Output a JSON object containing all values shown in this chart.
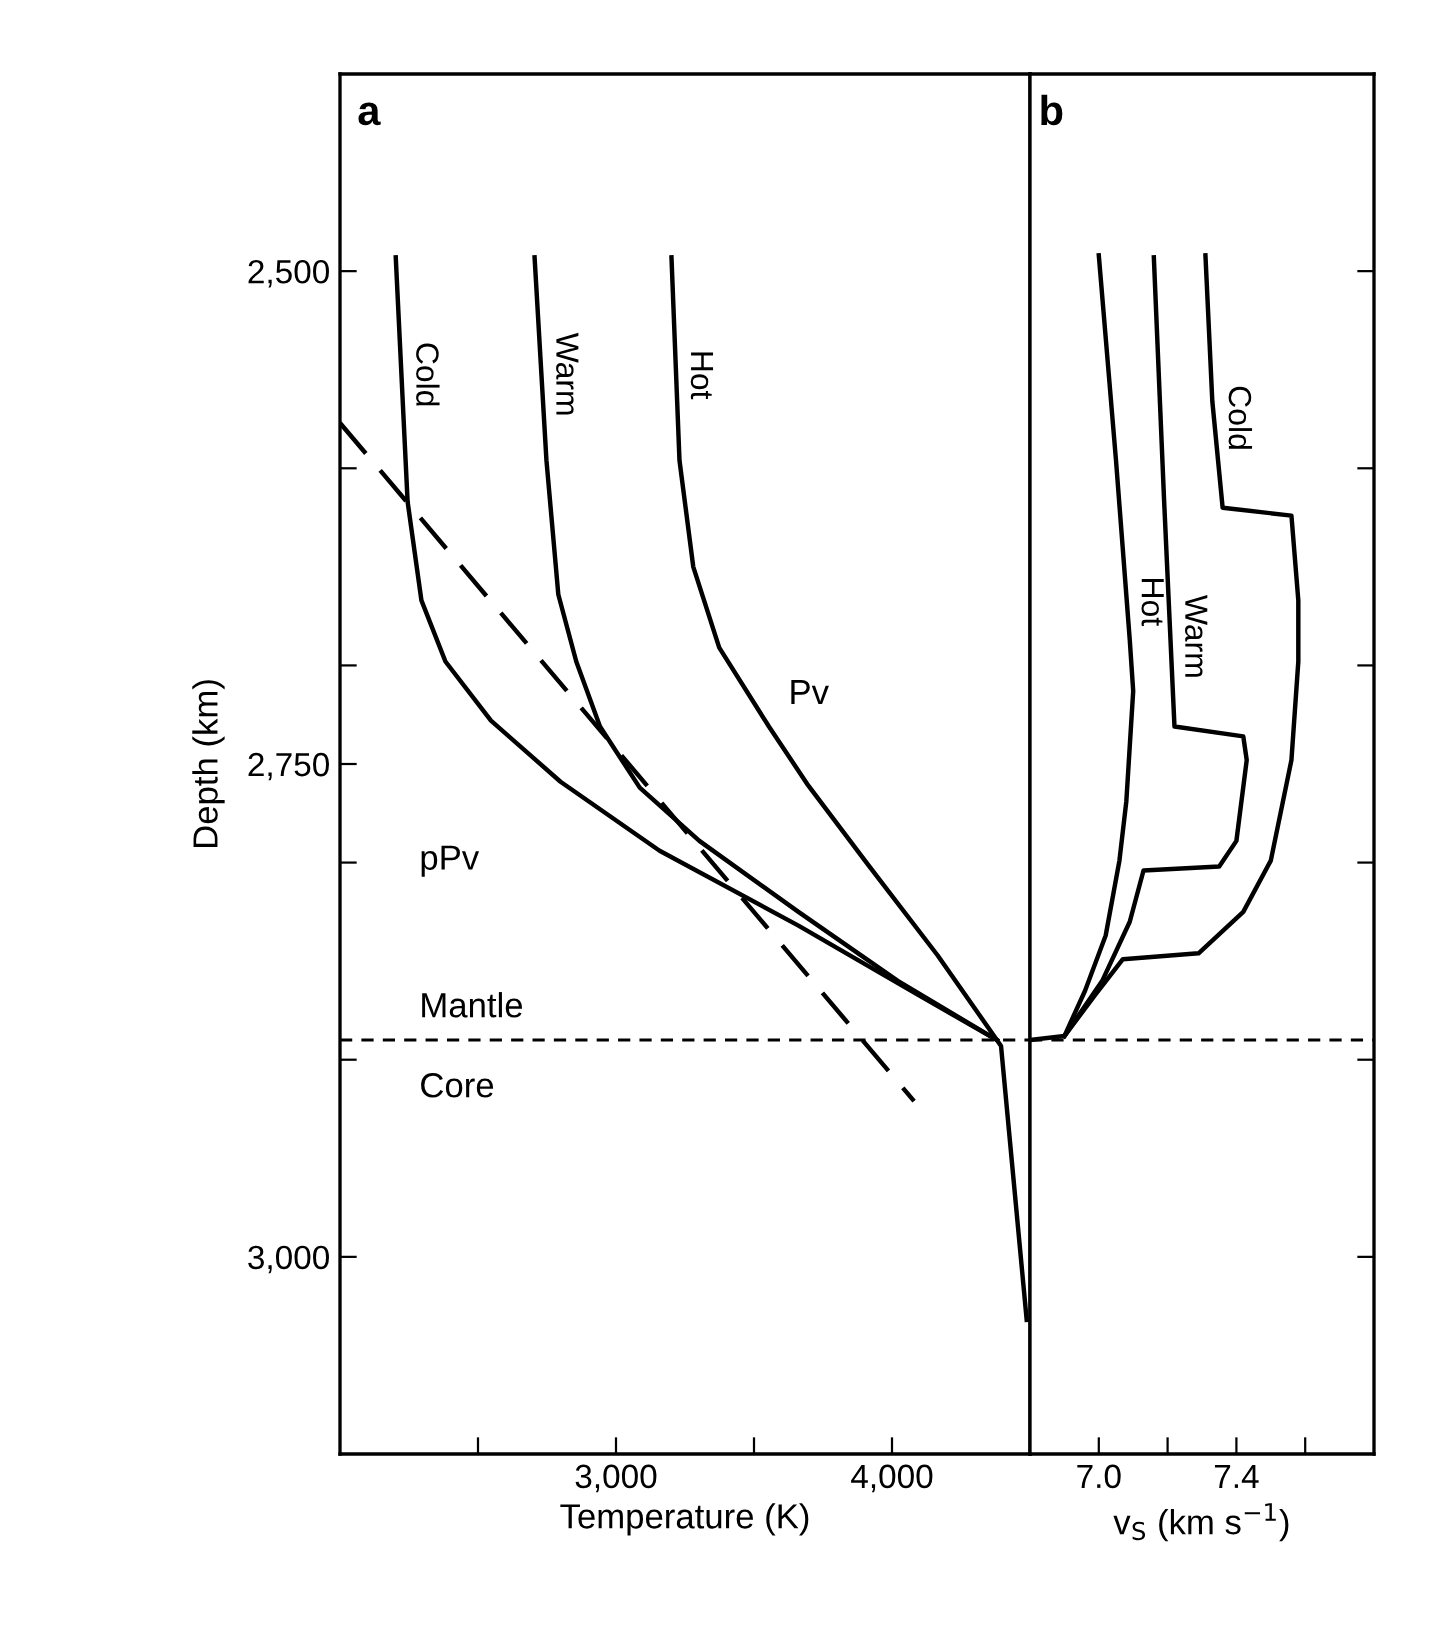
{
  "chart_data": [
    {
      "type": "line",
      "title": "a",
      "xlabel": "Temperature (K)",
      "ylabel": "Depth (km)",
      "xlim": [
        2000,
        4500
      ],
      "xticks": [
        {
          "value": 2500,
          "label": null
        },
        {
          "value": 3000,
          "label": "3,000"
        },
        {
          "value": 3500,
          "label": null
        },
        {
          "value": 4000,
          "label": "4,000"
        }
      ],
      "ylim": [
        3100,
        2400
      ],
      "yticks": [
        {
          "value": 2500,
          "label": "2,500"
        },
        {
          "value": 2600,
          "label": null
        },
        {
          "value": 2700,
          "label": null
        },
        {
          "value": 2750,
          "label": "2,750"
        },
        {
          "value": 2800,
          "label": null
        },
        {
          "value": 2900,
          "label": null
        },
        {
          "value": 3000,
          "label": "3,000"
        }
      ],
      "series": [
        {
          "name": "Cold",
          "color": "#000000",
          "x": [
            2202,
            2245,
            2295,
            2382,
            2547,
            2799,
            3158,
            3661,
            4093,
            4380
          ],
          "values": [
            2493,
            2617,
            2667,
            2698,
            2728,
            2759,
            2794,
            2832,
            2867,
            2890
          ]
        },
        {
          "name": "Warm",
          "color": "#000000",
          "x": [
            2705,
            2748,
            2791,
            2856,
            2942,
            3086,
            3302,
            3661,
            4021,
            4380
          ],
          "values": [
            2493,
            2596,
            2664,
            2698,
            2731,
            2762,
            2789,
            2825,
            2860,
            2890
          ]
        },
        {
          "name": "Hot",
          "color": "#000000",
          "x": [
            3201,
            3230,
            3280,
            3374,
            3554,
            3697,
            3913,
            4165,
            4380,
            4395,
            4488
          ],
          "values": [
            2493,
            2596,
            2650,
            2691,
            2731,
            2761,
            2801,
            2847,
            2890,
            2893,
            3032
          ]
        },
        {
          "color": "#000000",
          "line_style": "dashed",
          "x": [
            2000,
            4080
          ],
          "values": [
            2577,
            2921
          ]
        }
      ],
      "ref_lines": [
        {
          "axis": "y",
          "value": 2890,
          "line_style": "dashed",
          "color": "#000000"
        }
      ],
      "annotations": [
        "Pv",
        "pPv",
        "Mantle",
        "Core"
      ],
      "grid": false,
      "legend": false
    },
    {
      "type": "line",
      "title": "b",
      "xlabel": "v$_{S}$ (km s$^{−1}$)",
      "xlim": [
        6.8,
        7.8
      ],
      "xticks": [
        {
          "value": 7.0,
          "label": "7.0"
        },
        {
          "value": 7.2,
          "label": null
        },
        {
          "value": 7.4,
          "label": "7.4"
        },
        {
          "value": 7.6,
          "label": null
        }
      ],
      "ylim": [
        3100,
        2400
      ],
      "yticks": [
        {
          "value": 2500,
          "label": null
        },
        {
          "value": 2600,
          "label": null
        },
        {
          "value": 2700,
          "label": null
        },
        {
          "value": 2800,
          "label": null
        },
        {
          "value": 2900,
          "label": null
        },
        {
          "value": 3000,
          "label": null
        }
      ],
      "tick_labels": "x",
      "series": [
        {
          "name": "Cold",
          "color": "#000000",
          "x": [
            7.31,
            7.33,
            7.36,
            7.56,
            7.58,
            7.58,
            7.56,
            7.5,
            7.42,
            7.29,
            7.07,
            6.99,
            6.9
          ],
          "values": [
            2492,
            2566,
            2620,
            2624,
            2667,
            2698,
            2748,
            2799,
            2825,
            2846,
            2849,
            2867,
            2888
          ]
        },
        {
          "name": "Warm",
          "color": "#000000",
          "x": [
            7.16,
            7.19,
            7.22,
            7.42,
            7.43,
            7.4,
            7.35,
            7.13,
            7.09,
            7.01,
            6.9
          ],
          "values": [
            2493,
            2617,
            2731,
            2736,
            2748,
            2789,
            2802,
            2804,
            2830,
            2860,
            2888
          ]
        },
        {
          "name": "Hot",
          "color": "#000000",
          "x": [
            7.0,
            7.05,
            7.09,
            7.1,
            7.08,
            7.06,
            7.02,
            6.96,
            6.9,
            6.8
          ],
          "values": [
            2492,
            2596,
            2687,
            2713,
            2769,
            2799,
            2837,
            2865,
            2888,
            2890
          ]
        }
      ],
      "ref_lines": [
        {
          "axis": "y",
          "value": 2890,
          "line_style": "dashed",
          "color": "#000000"
        }
      ],
      "grid": false,
      "legend": false
    }
  ]
}
